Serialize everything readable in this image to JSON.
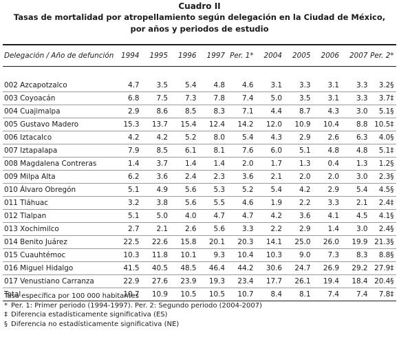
{
  "caption": "Cuadro II",
  "title_line1": "Tasas de mortalidad por atropellamiento según delegación en la Ciudad de México,",
  "title_line2": "por años y periodos de estudio",
  "table": {
    "headers": [
      "Delegación / Año de defunción",
      "1994",
      "1995",
      "1996",
      "1997",
      "Per. 1*",
      "2004",
      "2005",
      "2006",
      "2007",
      "Per. 2*"
    ],
    "rows": [
      [
        "002 Azcapotzalco",
        "4.7",
        "3.5",
        "5.4",
        "4.8",
        "4.6",
        "3.1",
        "3.3",
        "3.1",
        "3.3",
        "3.2§"
      ],
      [
        "003 Coyoacán",
        "6.8",
        "7.5",
        "7.3",
        "7.8",
        "7.4",
        "5.0",
        "3.5",
        "3.1",
        "3.3",
        "3.7‡"
      ],
      [
        "004 Cuajimalpa",
        "2.9",
        "8.6",
        "8.5",
        "8.3",
        "7.1",
        "4.4",
        "8.7",
        "4.3",
        "3.0",
        "5.1§"
      ],
      [
        "005 Gustavo Madero",
        "15.3",
        "13.7",
        "15.4",
        "12.4",
        "14.2",
        "12.0",
        "10.9",
        "10.4",
        "8.8",
        "10.5‡"
      ],
      [
        "006 Iztacalco",
        "4.2",
        "4.2",
        "5.2",
        "8.0",
        "5.4",
        "4.3",
        "2.9",
        "2.6",
        "6.3",
        "4.0§"
      ],
      [
        "007 Iztapalapa",
        "7.9",
        "8.5",
        "6.1",
        "8.1",
        "7.6",
        "6.0",
        "5.1",
        "4.8",
        "4.8",
        "5.1‡"
      ],
      [
        "008 Magdalena Contreras",
        "1.4",
        "3.7",
        "1.4",
        "1.4",
        "2.0",
        "1.7",
        "1.3",
        "0.4",
        "1.3",
        "1.2§"
      ],
      [
        "009 Milpa Alta",
        "6.2",
        "3.6",
        "2.4",
        "2.3",
        "3.6",
        "2.1",
        "2.0",
        "2.0",
        "3.0",
        "2.3§"
      ],
      [
        "010 Álvaro Obregón",
        "5.1",
        "4.9",
        "5.6",
        "5.3",
        "5.2",
        "5.4",
        "4.2",
        "2.9",
        "5.4",
        "4.5§"
      ],
      [
        "011 Tláhuac",
        "3.2",
        "3.8",
        "5.6",
        "5.5",
        "4.6",
        "1.9",
        "2.2",
        "3.3",
        "2.1",
        "2.4‡"
      ],
      [
        "012 Tlalpan",
        "5.1",
        "5.0",
        "4.0",
        "4.7",
        "4.7",
        "4.2",
        "3.6",
        "4.1",
        "4.5",
        "4.1§"
      ],
      [
        "013 Xochimilco",
        "2.7",
        "2.1",
        "2.6",
        "5.6",
        "3.3",
        "2.2",
        "2.9",
        "1.4",
        "3.0",
        "2.4§"
      ],
      [
        "014 Benito Juárez",
        "22.5",
        "22.6",
        "15.8",
        "20.1",
        "20.3",
        "14.1",
        "25.0",
        "26.0",
        "19.9",
        "21.3§"
      ],
      [
        "015 Cuauhtémoc",
        "10.3",
        "11.8",
        "10.1",
        "9.3",
        "10.4",
        "10.3",
        "9.0",
        "7.3",
        "8.3",
        "8.8§"
      ],
      [
        "016 Miguel Hidalgo",
        "41.5",
        "40.5",
        "48.5",
        "46.4",
        "44.2",
        "30.6",
        "24.7",
        "26.9",
        "29.2",
        "27.9‡"
      ],
      [
        "017 Venustiano Carranza",
        "22.9",
        "27.6",
        "23.9",
        "19.3",
        "23.4",
        "17.7",
        "26.1",
        "19.4",
        "18.4",
        "20.4§"
      ],
      [
        "Total",
        "10.7",
        "10.9",
        "10.5",
        "10.5",
        "10.7",
        "8.4",
        "8.1",
        "7.4",
        "7.4",
        "7.8‡"
      ]
    ]
  },
  "notes": {
    "rate": "Tasa específica por 100 000 habitantes",
    "periods_mark": "*",
    "periods": "Per. 1: Primer periodo (1994-1997). Per. 2: Segundo periodo (2004-2007)",
    "es_mark": "‡",
    "es": "Diferencia estadísticamente significativa (ES)",
    "ne_mark": "§",
    "ne": "Diferencia no estadísticamente significativa (NE)"
  }
}
